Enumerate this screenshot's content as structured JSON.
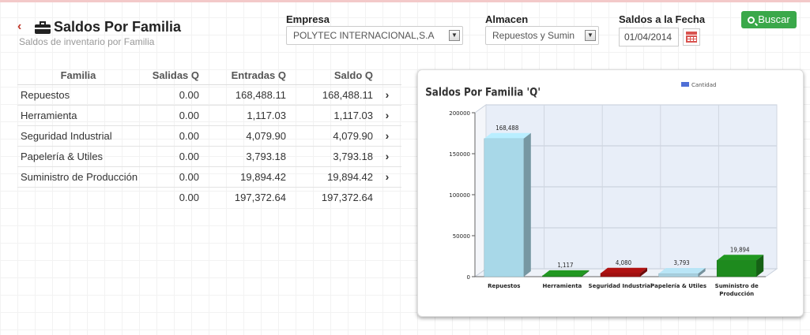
{
  "header": {
    "title": "Saldos Por Familia",
    "subtitle": "Saldos de inventario por Familia"
  },
  "filters": {
    "empresa_label": "Empresa",
    "empresa_value": "POLYTEC INTERNACIONAL,S.A",
    "almacen_label": "Almacen",
    "almacen_value": "Repuestos y Sumin",
    "fecha_label": "Saldos a la Fecha",
    "fecha_value": "01/04/2014",
    "buscar_label": "Buscar"
  },
  "table": {
    "headers": [
      "Familia",
      "Salidas Q",
      "Entradas Q",
      "Saldo Q"
    ],
    "rows": [
      {
        "familia": "Repuestos",
        "salidas": "0.00",
        "entradas": "168,488.11",
        "saldo": "168,488.11"
      },
      {
        "familia": "Herramienta",
        "salidas": "0.00",
        "entradas": "1,117.03",
        "saldo": "1,117.03"
      },
      {
        "familia": "Seguridad Industrial",
        "salidas": "0.00",
        "entradas": "4,079.90",
        "saldo": "4,079.90"
      },
      {
        "familia": "Papelería & Utiles",
        "salidas": "0.00",
        "entradas": "3,793.18",
        "saldo": "3,793.18"
      },
      {
        "familia": "Suministro de Producción",
        "salidas": "0.00",
        "entradas": "19,894.42",
        "saldo": "19,894.42"
      }
    ],
    "totals": {
      "salidas": "0.00",
      "entradas": "197,372.64",
      "saldo": "197,372.64"
    }
  },
  "chart_data": {
    "type": "bar",
    "title": "Saldos Por Familia 'Q'",
    "legend": [
      "Cantidad"
    ],
    "legend_position": "top-right",
    "grid": true,
    "categories": [
      "Repuestos",
      "Herramienta",
      "Seguridad Industrial",
      "Papelería & Utiles",
      "Suministro de Producción"
    ],
    "values": [
      168488,
      1117,
      4080,
      3793,
      19894
    ],
    "value_labels": [
      "168,488",
      "1,117",
      "4,080",
      "3,793",
      "19,894"
    ],
    "yticks": [
      0,
      50000,
      100000,
      150000,
      200000
    ],
    "ylim": [
      0,
      200000
    ],
    "colors": [
      "#a8d8e8",
      "#1e8a1e",
      "#a01010",
      "#a8d0e0",
      "#1e8a1e"
    ],
    "legend_color": "#4f6fd6"
  }
}
